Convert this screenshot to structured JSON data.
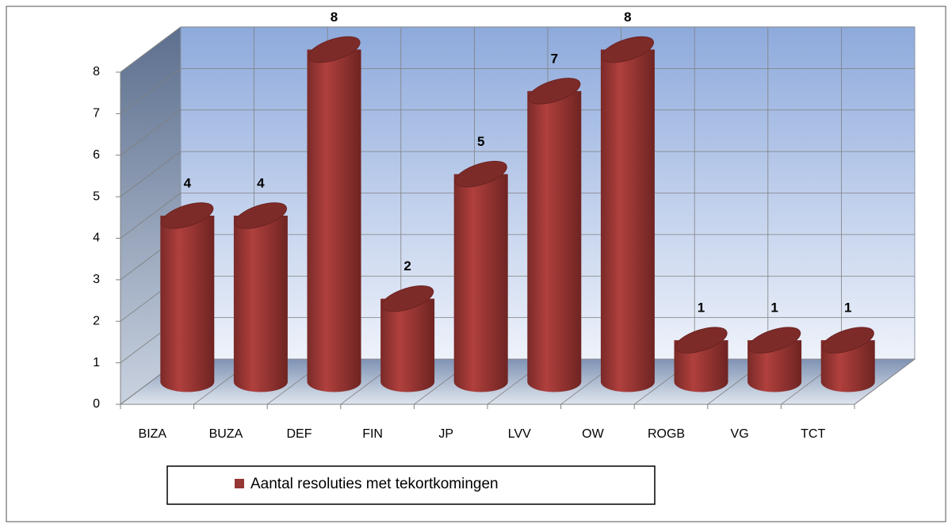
{
  "chart_data": {
    "type": "bar3d",
    "categories": [
      "BIZA",
      "BUZA",
      "DEF",
      "FIN",
      "JP",
      "LVV",
      "OW",
      "ROGB",
      "VG",
      "TCT"
    ],
    "series": [
      {
        "name": "Aantal resoluties  met tekortkomingen",
        "color": "#953735",
        "values": [
          4,
          4,
          8,
          2,
          5,
          7,
          8,
          1,
          1,
          1
        ]
      }
    ],
    "ylim": [
      0,
      8
    ],
    "yticks": [
      0,
      1,
      2,
      3,
      4,
      5,
      6,
      7,
      8
    ],
    "grid": true,
    "legend": "bottom"
  }
}
